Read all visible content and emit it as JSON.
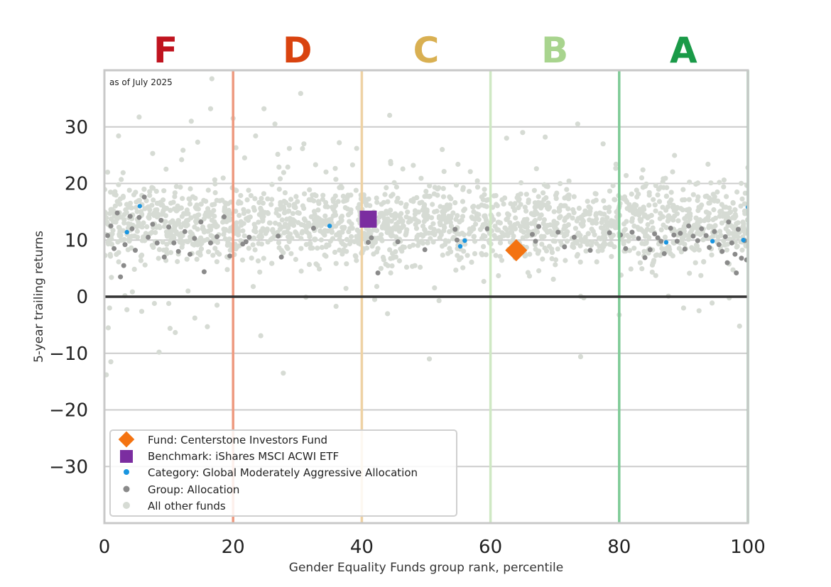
{
  "chart_data": {
    "type": "scatter",
    "note": "as of July 2025",
    "xlabel": "Gender Equality Funds group rank, percentile",
    "ylabel": "5-year trailing returns",
    "xlim": [
      0,
      100
    ],
    "ylim": [
      -40,
      40
    ],
    "x_ticks": [
      0,
      20,
      40,
      60,
      80,
      100
    ],
    "y_ticks": [
      -30,
      -20,
      -10,
      0,
      10,
      20,
      30
    ],
    "grid": "horizontal",
    "legend_position": "lower-left",
    "grades": [
      {
        "label": "F",
        "x_center": 9.5,
        "color": "#c0141f"
      },
      {
        "label": "D",
        "x_center": 30,
        "color": "#d9430f"
      },
      {
        "label": "C",
        "x_center": 50,
        "color": "#d9b052"
      },
      {
        "label": "B",
        "x_center": 70,
        "color": "#a8d48e"
      },
      {
        "label": "A",
        "x_center": 90,
        "color": "#1a9a48"
      }
    ],
    "grade_boundaries": [
      {
        "x": 20,
        "color": "#ee9a80"
      },
      {
        "x": 40,
        "color": "#eed2a4"
      },
      {
        "x": 60,
        "color": "#cfe8c4"
      },
      {
        "x": 80,
        "color": "#7fcb97"
      },
      {
        "x": 100,
        "color": "#7fcb97"
      }
    ],
    "fund": {
      "name": "Fund: Centerstone Investors Fund",
      "x": 64,
      "y": 8.2,
      "color": "#f47311"
    },
    "benchmark": {
      "name": "Benchmark: iShares MSCI ACWI ETF",
      "x": 41,
      "y": 13.7,
      "color": "#7b2da0"
    },
    "category": {
      "name": "Category: Global Moderately Aggressive Allocation",
      "color": "#1995e0",
      "points": [
        [
          3.5,
          11.4
        ],
        [
          5.5,
          16.0
        ],
        [
          35,
          12.5
        ],
        [
          55.3,
          8.9
        ],
        [
          56,
          9.9
        ],
        [
          87.3,
          9.6
        ],
        [
          94.5,
          9.8
        ],
        [
          99.3,
          10.0
        ],
        [
          100,
          15.8
        ]
      ]
    },
    "group": {
      "name": "Group: Allocation",
      "color": "#8a8a8a",
      "points": [
        [
          0.5,
          10.8
        ],
        [
          1,
          12.5
        ],
        [
          1.5,
          8.5
        ],
        [
          2,
          14.8
        ],
        [
          2.5,
          3.5
        ],
        [
          3,
          5.5
        ],
        [
          3.2,
          9.2
        ],
        [
          4,
          14.2
        ],
        [
          4.3,
          12.0
        ],
        [
          4.8,
          8.2
        ],
        [
          5.4,
          14.0
        ],
        [
          6.2,
          17.6
        ],
        [
          6.8,
          10.5
        ],
        [
          7.5,
          12.8
        ],
        [
          8.2,
          9.5
        ],
        [
          8.8,
          13.5
        ],
        [
          9.3,
          7.0
        ],
        [
          10,
          12.3
        ],
        [
          10.8,
          9.5
        ],
        [
          11.5,
          8.0
        ],
        [
          12.5,
          11.5
        ],
        [
          13.3,
          7.5
        ],
        [
          14,
          10.3
        ],
        [
          15,
          13.2
        ],
        [
          15.5,
          4.4
        ],
        [
          16.5,
          9.5
        ],
        [
          17.5,
          10.6
        ],
        [
          18.6,
          14.1
        ],
        [
          19.5,
          7.2
        ],
        [
          21.5,
          9.3
        ],
        [
          22,
          9.7
        ],
        [
          22.5,
          10.5
        ],
        [
          27,
          10.7
        ],
        [
          27.5,
          7.0
        ],
        [
          32.5,
          12.1
        ],
        [
          41.5,
          10.4
        ],
        [
          41,
          9.6
        ],
        [
          42.5,
          4.2
        ],
        [
          45.6,
          9.7
        ],
        [
          49.8,
          8.3
        ],
        [
          54.5,
          11.9
        ],
        [
          54.8,
          10.0
        ],
        [
          59.5,
          12.0
        ],
        [
          66.5,
          11.0
        ],
        [
          67,
          9.8
        ],
        [
          67.5,
          12.4
        ],
        [
          70.5,
          11.4
        ],
        [
          71.5,
          8.8
        ],
        [
          73,
          10.5
        ],
        [
          75.5,
          8.2
        ],
        [
          78.5,
          11.3
        ],
        [
          80.2,
          10.9
        ],
        [
          81,
          8.5
        ],
        [
          82,
          11.4
        ],
        [
          83,
          10.3
        ],
        [
          84,
          6.9
        ],
        [
          84.8,
          8.3
        ],
        [
          85.5,
          11.1
        ],
        [
          86,
          10.4
        ],
        [
          86.5,
          9.8
        ],
        [
          87,
          7.6
        ],
        [
          88,
          12.1
        ],
        [
          88.5,
          10.9
        ],
        [
          89,
          9.8
        ],
        [
          89.5,
          11.2
        ],
        [
          90.2,
          8.4
        ],
        [
          90.8,
          12.5
        ],
        [
          91.5,
          10.7
        ],
        [
          92.2,
          9.9
        ],
        [
          92.8,
          12.0
        ],
        [
          93.5,
          10.8
        ],
        [
          94,
          8.7
        ],
        [
          94.8,
          11.5
        ],
        [
          95.5,
          9.2
        ],
        [
          96,
          8.0
        ],
        [
          96.5,
          10.6
        ],
        [
          97,
          13.2
        ],
        [
          97.5,
          9.5
        ],
        [
          98,
          7.5
        ],
        [
          98.5,
          11.9
        ],
        [
          99,
          6.8
        ],
        [
          99.5,
          9.9
        ],
        [
          99.8,
          6.5
        ],
        [
          96.8,
          6.0
        ],
        [
          98.2,
          4.2
        ]
      ]
    },
    "others": {
      "name": "All other funds",
      "color": "#d6dbd4",
      "description": "approximately 2000 funds spread across percentile 0-100; returns cluster between about 5 and 20 with a center near 13, scattered outliers from about -14 to 38",
      "count": 2000,
      "center": 13,
      "outliers": [
        [
          0.3,
          -13.8
        ],
        [
          0.6,
          -5.5
        ],
        [
          0.8,
          -2.0
        ],
        [
          1,
          -11.5
        ],
        [
          3.5,
          -2.3
        ],
        [
          8.5,
          -9.8
        ],
        [
          10,
          -1.2
        ],
        [
          10.2,
          -5.6
        ],
        [
          13,
          1.0
        ],
        [
          16,
          -5.3
        ],
        [
          17.5,
          -1.5
        ],
        [
          24.3,
          -6.9
        ],
        [
          27.8,
          -13.5
        ],
        [
          36,
          -1.7
        ],
        [
          42,
          -0.5
        ],
        [
          44,
          -3.0
        ],
        [
          50.5,
          -11.0
        ],
        [
          52,
          -0.7
        ],
        [
          74,
          -10.6
        ],
        [
          74.5,
          -0.2
        ],
        [
          90,
          -2.0
        ],
        [
          98.7,
          -5.2
        ],
        [
          16.7,
          38.5
        ],
        [
          30.5,
          35.9
        ],
        [
          13.5,
          31.0
        ],
        [
          16.5,
          33.2
        ],
        [
          24.8,
          33.2
        ],
        [
          26.5,
          30.5
        ],
        [
          20,
          31.5
        ],
        [
          14.5,
          27.3
        ],
        [
          36.5,
          27.2
        ],
        [
          65,
          29.0
        ],
        [
          77.5,
          27.0
        ],
        [
          2.2,
          28.4
        ],
        [
          23.5,
          28.4
        ],
        [
          31,
          27.0
        ],
        [
          44.5,
          23.5
        ],
        [
          52.5,
          26.0
        ],
        [
          62.5,
          28.0
        ],
        [
          68.5,
          28.2
        ],
        [
          79.5,
          23.4
        ],
        [
          83.5,
          21.0
        ],
        [
          93.8,
          23.4
        ],
        [
          100,
          22.8
        ],
        [
          0.5,
          22.0
        ],
        [
          7.5,
          25.3
        ],
        [
          12,
          24.2
        ],
        [
          28.5,
          22.9
        ],
        [
          39.2,
          26.2
        ],
        [
          48,
          23.2
        ]
      ]
    }
  }
}
